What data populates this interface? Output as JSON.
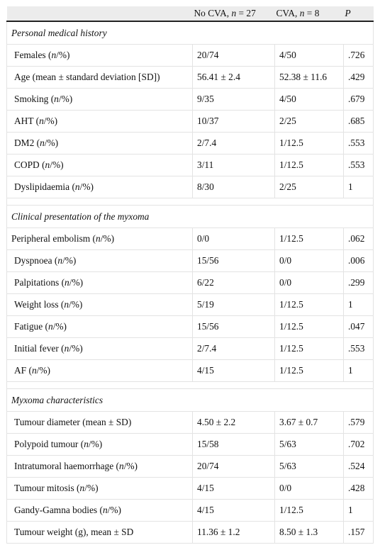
{
  "header": {
    "col1": "",
    "col2_prefix": "No CVA, ",
    "col2_n": "n",
    "col2_suffix": " = 27",
    "col3_prefix": "CVA, ",
    "col3_n": "n",
    "col3_suffix": " = 8",
    "col4": "P"
  },
  "sections": [
    {
      "title": "Personal medical history",
      "rows": [
        {
          "label": "Females (",
          "italic": "n",
          "label_end": "/%)",
          "v1": "20/74",
          "v2": "4/50",
          "p": ".726"
        },
        {
          "label": "Age (mean ± standard deviation [SD])",
          "italic": "",
          "label_end": "",
          "v1": "56.41 ± 2.4",
          "v2": "52.38 ± 11.6",
          "p": ".429"
        },
        {
          "label": "Smoking (",
          "italic": "n",
          "label_end": "/%)",
          "v1": "9/35",
          "v2": "4/50",
          "p": ".679"
        },
        {
          "label": "AHT (",
          "italic": "n",
          "label_end": "/%)",
          "v1": "10/37",
          "v2": "2/25",
          "p": ".685"
        },
        {
          "label": "DM2 (",
          "italic": "n",
          "label_end": "/%)",
          "v1": "2/7.4",
          "v2": "1/12.5",
          "p": ".553"
        },
        {
          "label": "COPD (",
          "italic": "n",
          "label_end": "/%)",
          "v1": "3/11",
          "v2": "1/12.5",
          "p": ".553"
        },
        {
          "label": "Dyslipidaemia (",
          "italic": "n",
          "label_end": "/%)",
          "v1": "8/30",
          "v2": "2/25",
          "p": "1"
        }
      ]
    },
    {
      "title": "Clinical presentation of the myxoma",
      "rows": [
        {
          "label": "Peripheral embolism (",
          "italic": "n",
          "label_end": "/%)",
          "v1": "0/0",
          "v2": "1/12.5",
          "p": ".062",
          "nopad": true
        },
        {
          "label": "Dyspnoea (",
          "italic": "n",
          "label_end": "/%)",
          "v1": "15/56",
          "v2": "0/0",
          "p": ".006"
        },
        {
          "label": "Palpitations (",
          "italic": "n",
          "label_end": "/%)",
          "v1": "6/22",
          "v2": "0/0",
          "p": ".299"
        },
        {
          "label": "Weight loss (",
          "italic": "n",
          "label_end": "/%)",
          "v1": "5/19",
          "v2": "1/12.5",
          "p": "1"
        },
        {
          "label": "Fatigue (",
          "italic": "n",
          "label_end": "/%)",
          "v1": "15/56",
          "v2": "1/12.5",
          "p": ".047"
        },
        {
          "label": "Initial fever (",
          "italic": "n",
          "label_end": "/%)",
          "v1": "2/7.4",
          "v2": "1/12.5",
          "p": ".553"
        },
        {
          "label": "AF (",
          "italic": "n",
          "label_end": "/%)",
          "v1": "4/15",
          "v2": "1/12.5",
          "p": "1"
        }
      ]
    },
    {
      "title": "Myxoma characteristics",
      "rows": [
        {
          "label": "Tumour diameter (mean ± SD)",
          "italic": "",
          "label_end": "",
          "v1": "4.50 ± 2.2",
          "v2": "3.67 ± 0.7",
          "p": ".579"
        },
        {
          "label": "Polypoid tumour (",
          "italic": "n",
          "label_end": "/%)",
          "v1": "15/58",
          "v2": "5/63",
          "p": ".702"
        },
        {
          "label": "Intratumoral haemorrhage (",
          "italic": "n",
          "label_end": "/%)",
          "v1": "20/74",
          "v2": "5/63",
          "p": ".524"
        },
        {
          "label": "Tumour mitosis (",
          "italic": "n",
          "label_end": "/%)",
          "v1": "4/15",
          "v2": "0/0",
          "p": ".428"
        },
        {
          "label": "Gandy-Gamna bodies (",
          "italic": "n",
          "label_end": "/%)",
          "v1": "4/15",
          "v2": "1/12.5",
          "p": "1"
        },
        {
          "label": "Tumour weight (g), mean ± SD",
          "italic": "",
          "label_end": "",
          "v1": "11.36 ± 1.2",
          "v2": "8.50 ± 1.3",
          "p": ".157"
        }
      ]
    }
  ]
}
